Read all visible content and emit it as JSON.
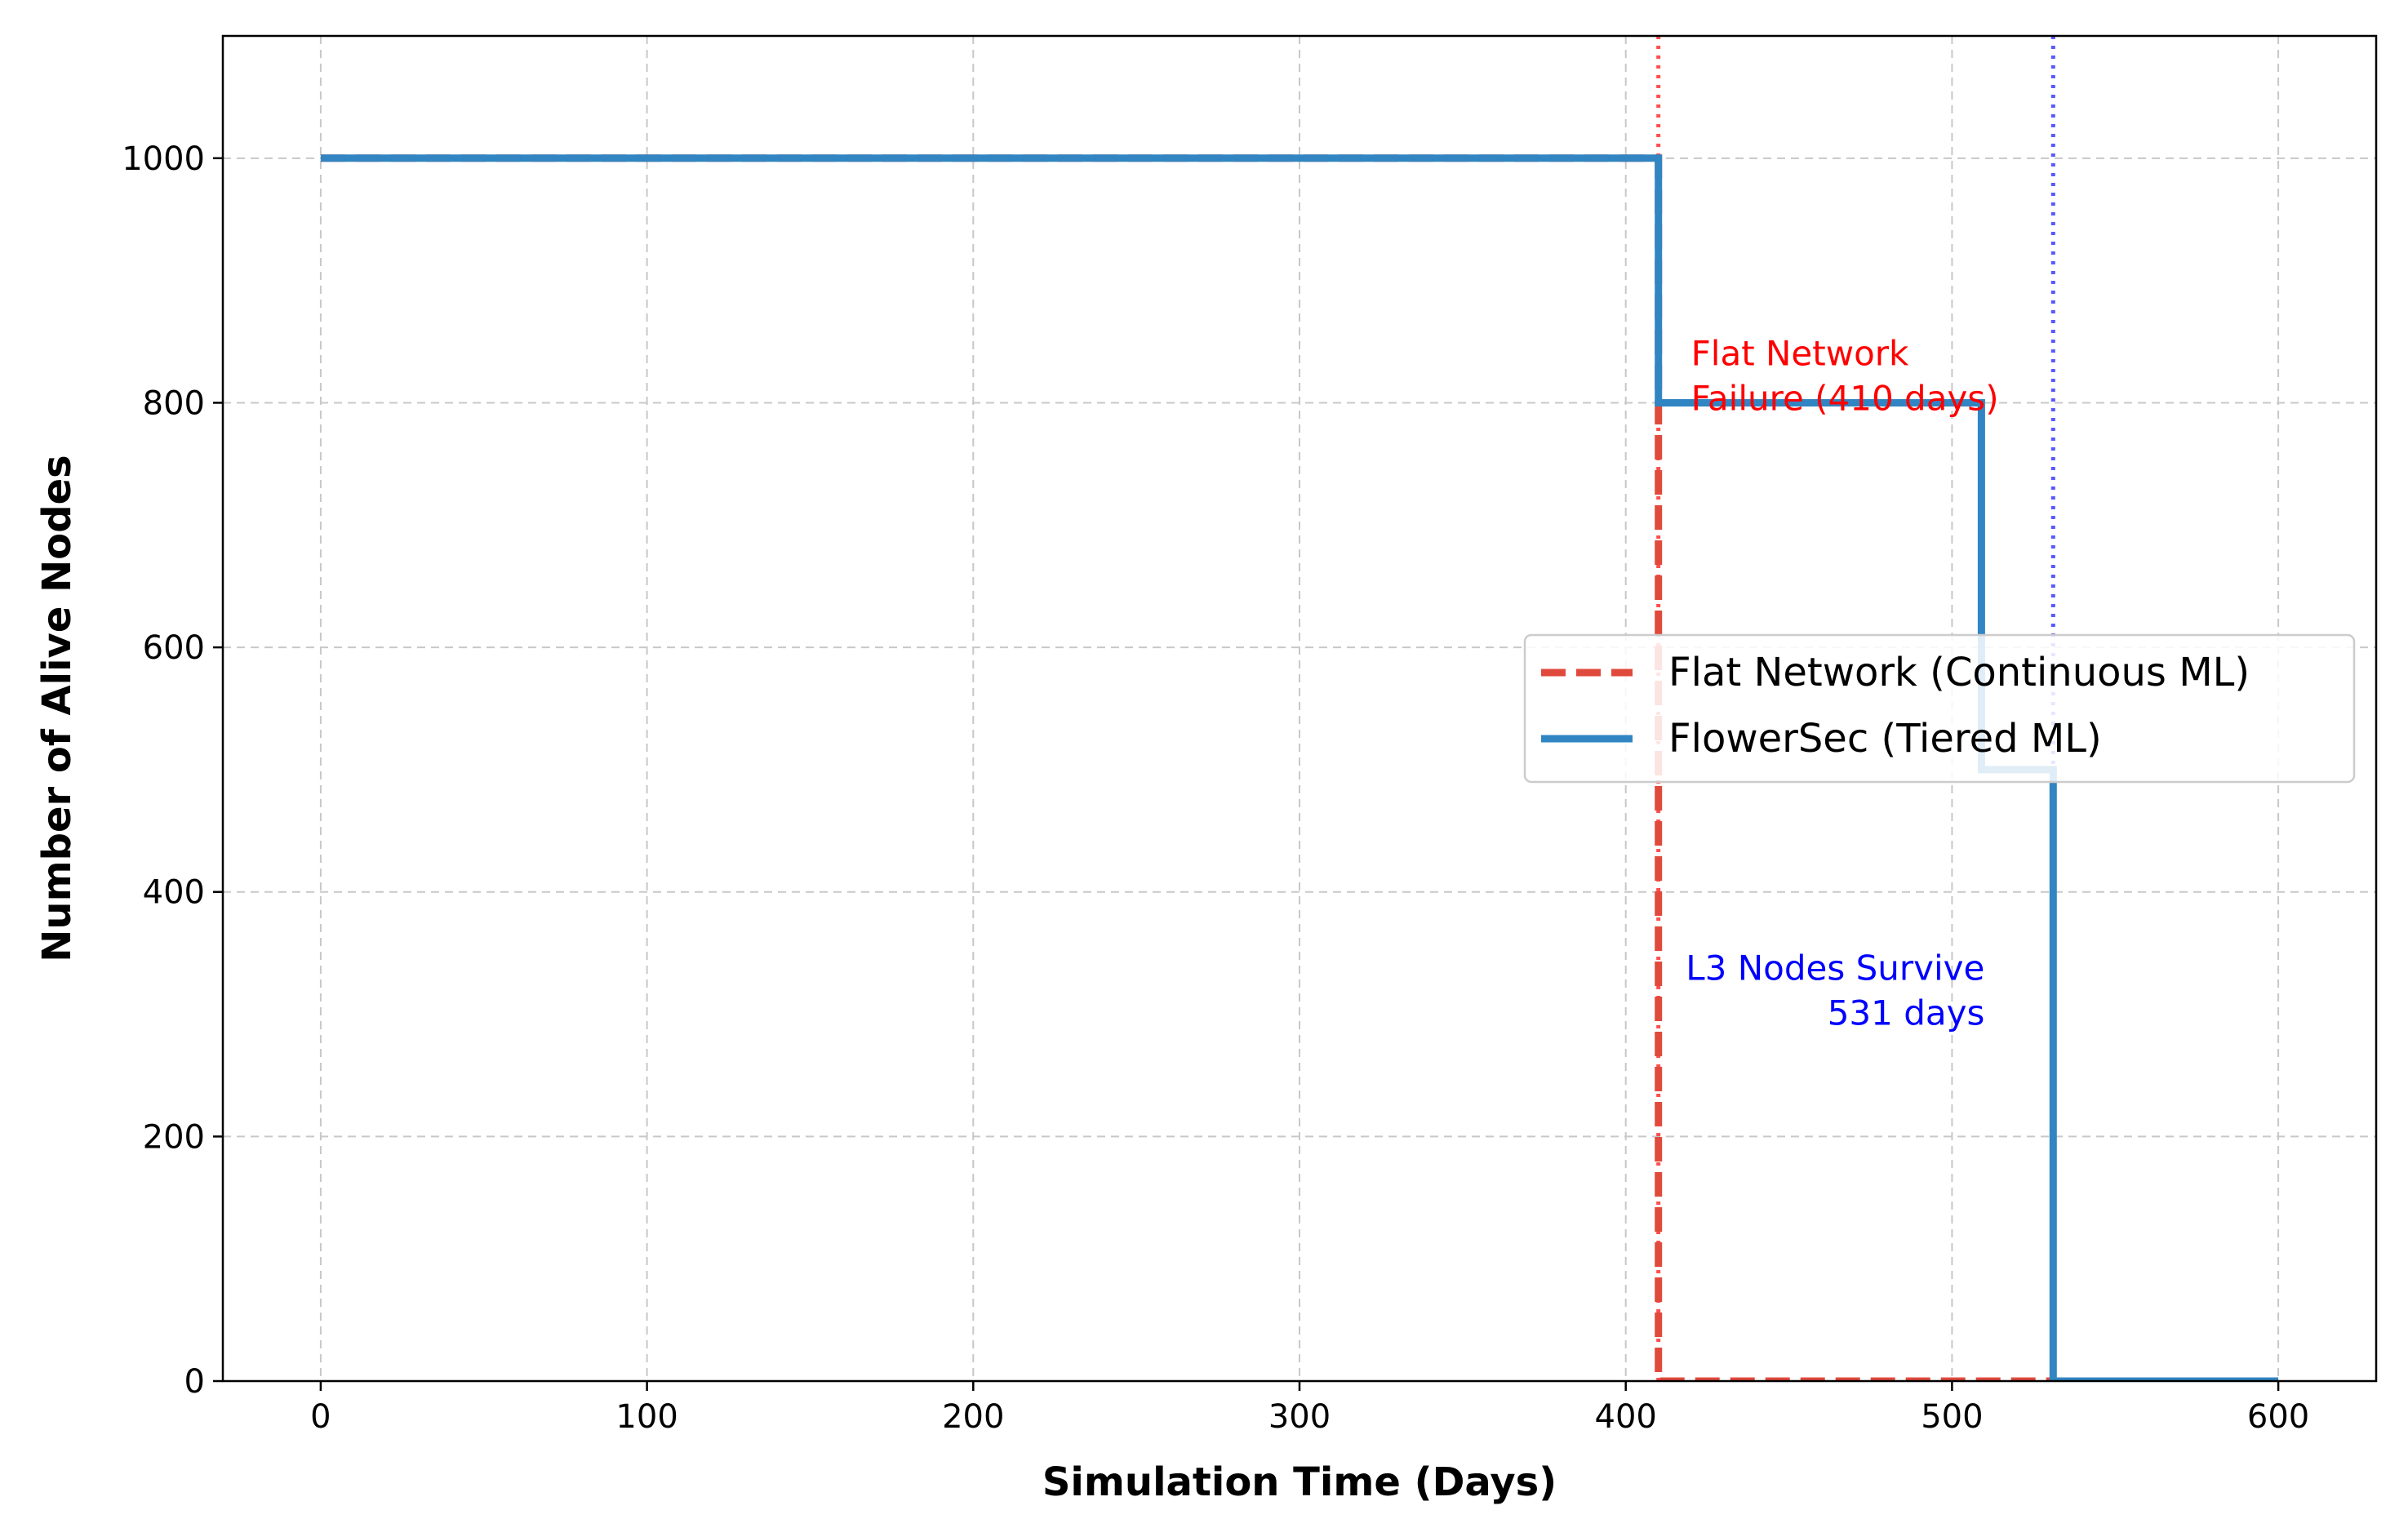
{
  "chart_data": {
    "type": "line",
    "title": "",
    "xlabel": "Simulation Time (Days)",
    "ylabel": "Number of Alive Nodes",
    "xlim": [
      -30,
      630
    ],
    "ylim": [
      0,
      1100
    ],
    "xticks": [
      0,
      100,
      200,
      300,
      400,
      500,
      600
    ],
    "yticks": [
      0,
      200,
      400,
      600,
      800,
      1000
    ],
    "xtick_labels": [
      "0",
      "100",
      "200",
      "300",
      "400",
      "500",
      "600"
    ],
    "ytick_labels": [
      "0",
      "200",
      "400",
      "600",
      "800",
      "1000"
    ],
    "grid": true,
    "legend_position": "right",
    "series": [
      {
        "name": "Flat Network (Continuous ML)",
        "color": "#e04a3c",
        "style": "dashed",
        "x": [
          0,
          410,
          410,
          531
        ],
        "y": [
          1000,
          1000,
          0,
          0
        ]
      },
      {
        "name": "FlowerSec (Tiered ML)",
        "color": "#3185c2",
        "style": "solid",
        "x": [
          0,
          410,
          410,
          509,
          509,
          531,
          531,
          600
        ],
        "y": [
          1000,
          1000,
          800,
          800,
          500,
          500,
          0,
          0
        ]
      }
    ],
    "vlines": [
      {
        "x": 410,
        "color": "#ff3030",
        "style": "dotted"
      },
      {
        "x": 531,
        "color": "#3b3bff",
        "style": "dotted"
      }
    ],
    "annotations": [
      {
        "id": "flat_failure",
        "lines": [
          "Flat Network",
          "Failure (410 days)"
        ],
        "x": 420,
        "y": 800,
        "color": "#ff0000",
        "align": "left"
      },
      {
        "id": "l3_survive",
        "lines": [
          "L3 Nodes Survive",
          "531 days"
        ],
        "x": 510,
        "y": 300,
        "color": "#0000ff",
        "align": "right"
      }
    ]
  }
}
